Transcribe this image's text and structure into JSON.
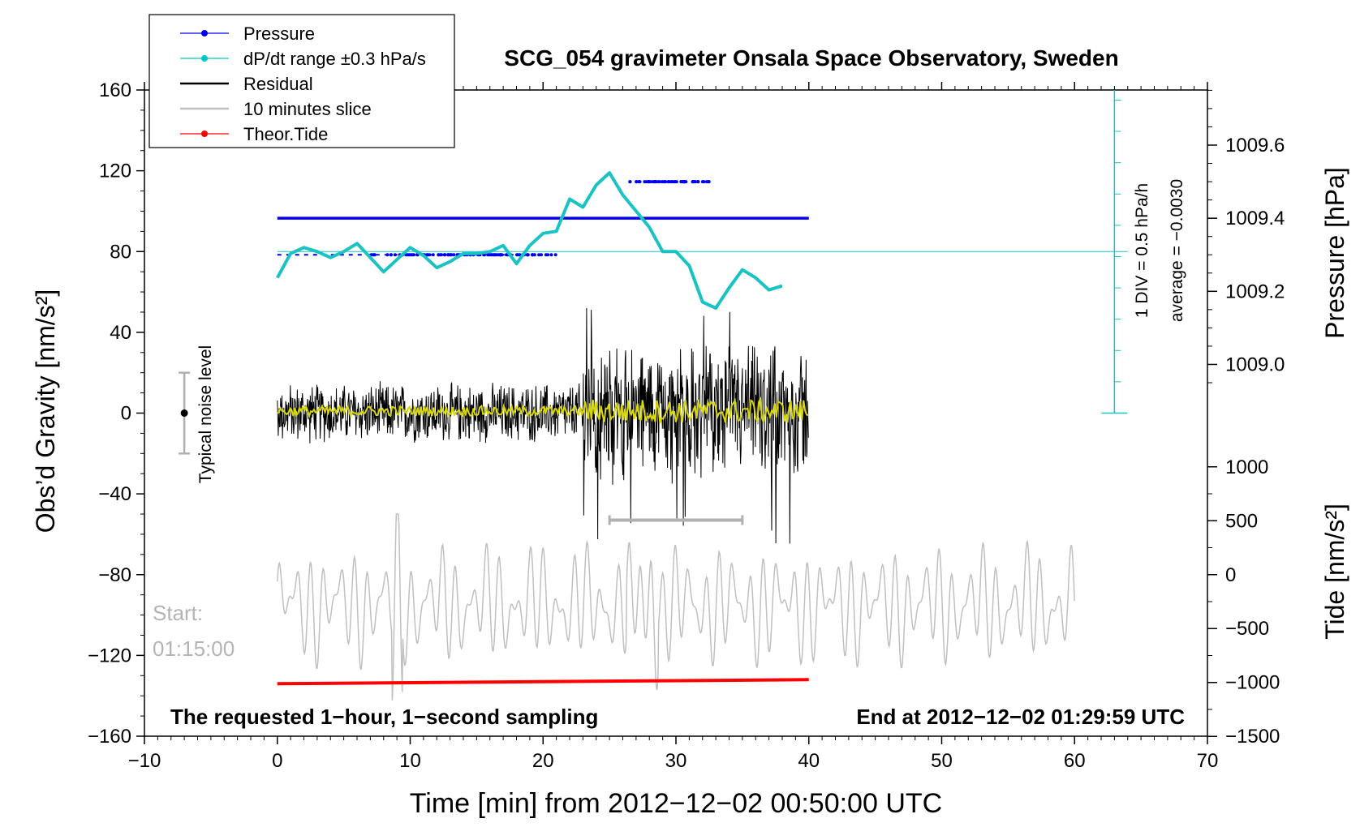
{
  "chart_data": {
    "type": "line",
    "title": "SCG_054 gravimeter Onsala Space Observatory, Sweden",
    "xlabel": "Time [min] from 2012−12−02 00:50:00 UTC",
    "ylabel_left": "Obs’d Gravity [nm/s²]",
    "ylabel_pressure": "Pressure [hPa]",
    "ylabel_tide": "Tide [nm/s²]",
    "xlim": [
      -10,
      70
    ],
    "ylim_gravity": [
      -160,
      160
    ],
    "xticks": [
      "−10",
      "0",
      "10",
      "20",
      "30",
      "40",
      "50",
      "60",
      "70"
    ],
    "yticks_gravity": [
      "160",
      "120",
      "80",
      "40",
      "0",
      "−40",
      "−80",
      "−120",
      "−160"
    ],
    "pressure_ticks": [
      "1009.6",
      "1009.4",
      "1009.2",
      "1009.0"
    ],
    "tide_ticks": [
      "1000",
      "500",
      "0",
      "−500",
      "−1000",
      "−1500"
    ],
    "legend": [
      {
        "label": "Pressure",
        "color": "#0000ee",
        "style": "dots-line"
      },
      {
        "label": "dP/dt range ±0.3 hPa/s",
        "color": "#00c8c8",
        "style": "dots-line"
      },
      {
        "label": "Residual",
        "color": "#000000",
        "style": "line"
      },
      {
        "label": "10 minutes slice",
        "color": "#c0c0c0",
        "style": "line"
      },
      {
        "label": "Theor.Tide",
        "color": "#ff0000",
        "style": "dots-line"
      }
    ],
    "series": [
      {
        "name": "Pressure",
        "x_range": [
          0,
          40
        ],
        "levels_hPa": [
          1009.3,
          1009.4,
          1009.5
        ]
      },
      {
        "name": "dP/dt range ±0.3 hPa/s",
        "x": [
          0,
          1,
          2,
          3,
          4,
          5,
          6,
          7,
          8,
          9,
          10,
          11,
          12,
          13,
          14,
          15,
          16,
          17,
          18,
          19,
          20,
          21,
          22,
          23,
          24,
          25,
          26,
          27,
          28,
          29,
          30,
          31,
          32,
          33,
          34,
          35,
          36,
          37,
          38
        ],
        "y": [
          67,
          79,
          82,
          80,
          77,
          80,
          84,
          77,
          70,
          76,
          82,
          78,
          72,
          75,
          79,
          79,
          80,
          83,
          74,
          83,
          89,
          90,
          106,
          102,
          113,
          119,
          108,
          100,
          92,
          80,
          80,
          73,
          55,
          52,
          62,
          71,
          67,
          61,
          63
        ]
      },
      {
        "name": "Residual",
        "x_range": [
          0,
          40
        ],
        "amplitude_pre_23": 15,
        "amplitude_post_23": 40
      },
      {
        "name": "10 minutes slice",
        "x_range": [
          0,
          60
        ],
        "baseline": -95,
        "amplitude": 30
      },
      {
        "name": "Theor.Tide",
        "x": [
          0,
          40
        ],
        "y": [
          -134,
          -132
        ]
      }
    ],
    "annotations": {
      "noise_label": "Typical noise level",
      "noise_range": [
        -20,
        20
      ],
      "noise_x": -7,
      "slice_marker_x": [
        25,
        35
      ],
      "slice_marker_y": -53,
      "start_label": "Start:",
      "start_time": "01:15:00",
      "div_label": "1 DIV = 0.5 hPa/h",
      "average_label": "average = −0.0030",
      "footer_left": "The requested 1−hour, 1−second sampling",
      "footer_right": "End at 2012−12−02 01:29:59 UTC"
    }
  }
}
